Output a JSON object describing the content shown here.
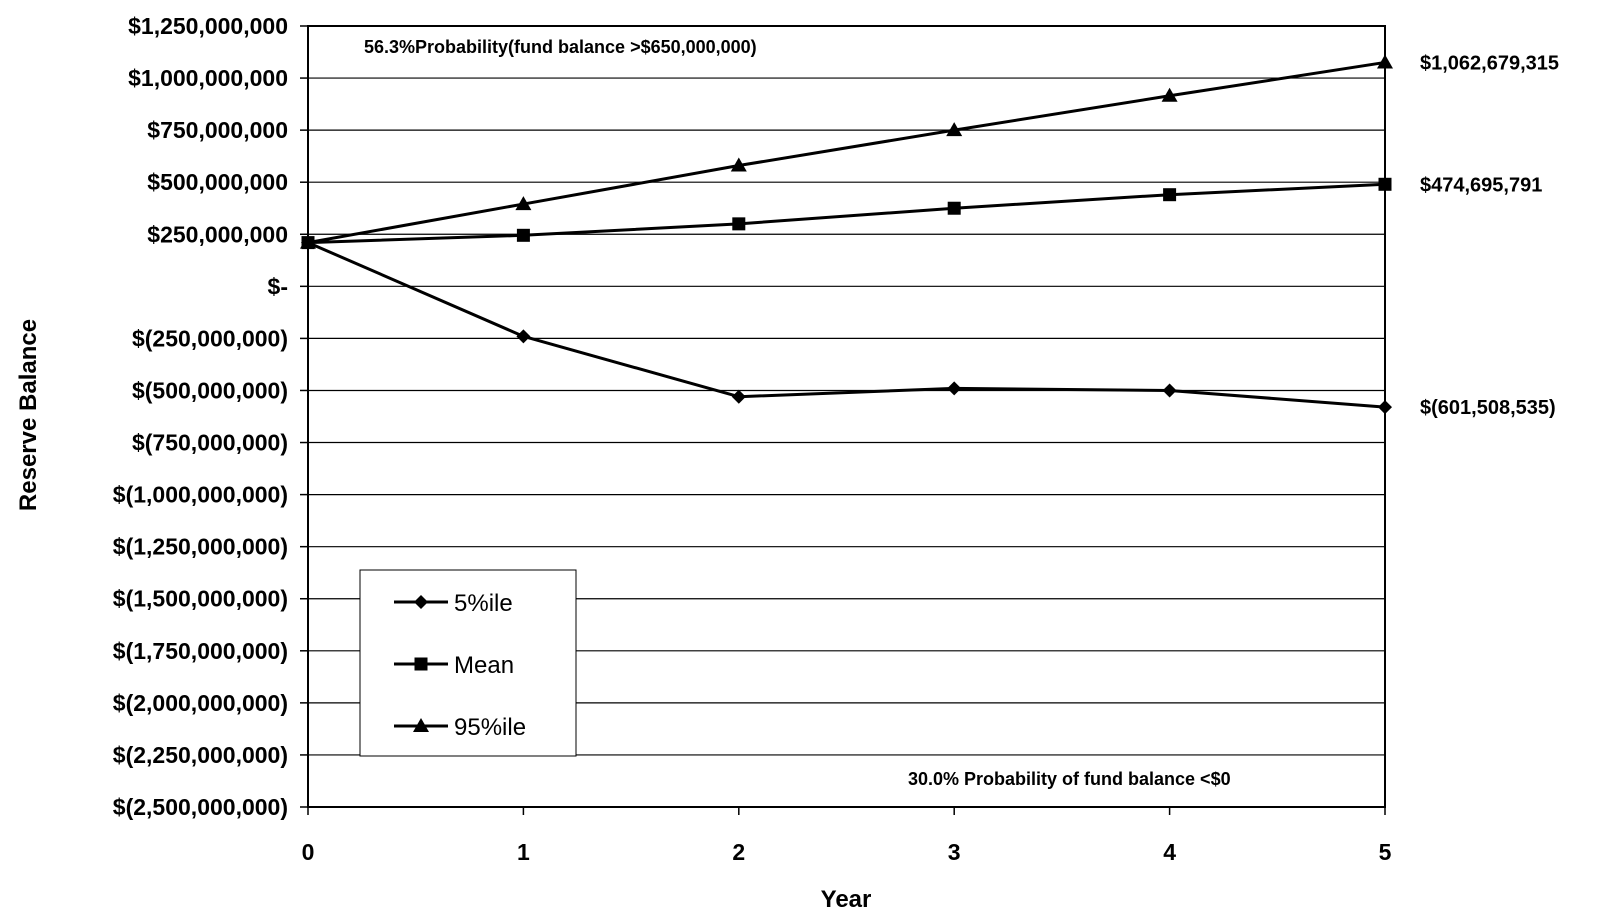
{
  "chart_data": {
    "type": "line",
    "title": "",
    "xlabel": "Year",
    "ylabel": "Reserve Balance",
    "x": [
      0,
      1,
      2,
      3,
      4,
      5
    ],
    "ylim": [
      -2500000000,
      1250000000
    ],
    "y_ticks": [
      1250000000,
      1000000000,
      750000000,
      500000000,
      250000000,
      0,
      -250000000,
      -500000000,
      -750000000,
      -1000000000,
      -1250000000,
      -1500000000,
      -1750000000,
      -2000000000,
      -2250000000,
      -2500000000
    ],
    "y_tick_labels": [
      "$1,250,000,000",
      "$1,000,000,000",
      "$750,000,000",
      "$500,000,000",
      "$250,000,000",
      "$-",
      "$(250,000,000)",
      "$(500,000,000)",
      "$(750,000,000)",
      "$(1,000,000,000)",
      "$(1,250,000,000)",
      "$(1,500,000,000)",
      "$(1,750,000,000)",
      "$(2,000,000,000)",
      "$(2,250,000,000)",
      "$(2,500,000,000)"
    ],
    "x_tick_labels": [
      "0",
      "1",
      "2",
      "3",
      "4",
      "5"
    ],
    "grid": true,
    "legend_position": "lower-left",
    "series": [
      {
        "name": "5%ile",
        "marker": "diamond",
        "values": [
          210000000,
          -240000000,
          -530000000,
          -490000000,
          -500000000,
          -580000000
        ]
      },
      {
        "name": "Mean",
        "marker": "square",
        "values": [
          210000000,
          245000000,
          300000000,
          375000000,
          440000000,
          490000000
        ]
      },
      {
        "name": "95%ile",
        "marker": "triangle",
        "values": [
          210000000,
          395000000,
          580000000,
          750000000,
          915000000,
          1075000000
        ]
      }
    ],
    "end_labels": [
      {
        "series": "95%ile",
        "text": "$1,062,679,315"
      },
      {
        "series": "Mean",
        "text": "$474,695,791"
      },
      {
        "series": "5%ile",
        "text": "$(601,508,535)"
      }
    ],
    "annotations": {
      "top": "56.3%Probability(fund balance >$650,000,000)",
      "bottom": "30.0%  Probability of fund balance <$0"
    }
  }
}
